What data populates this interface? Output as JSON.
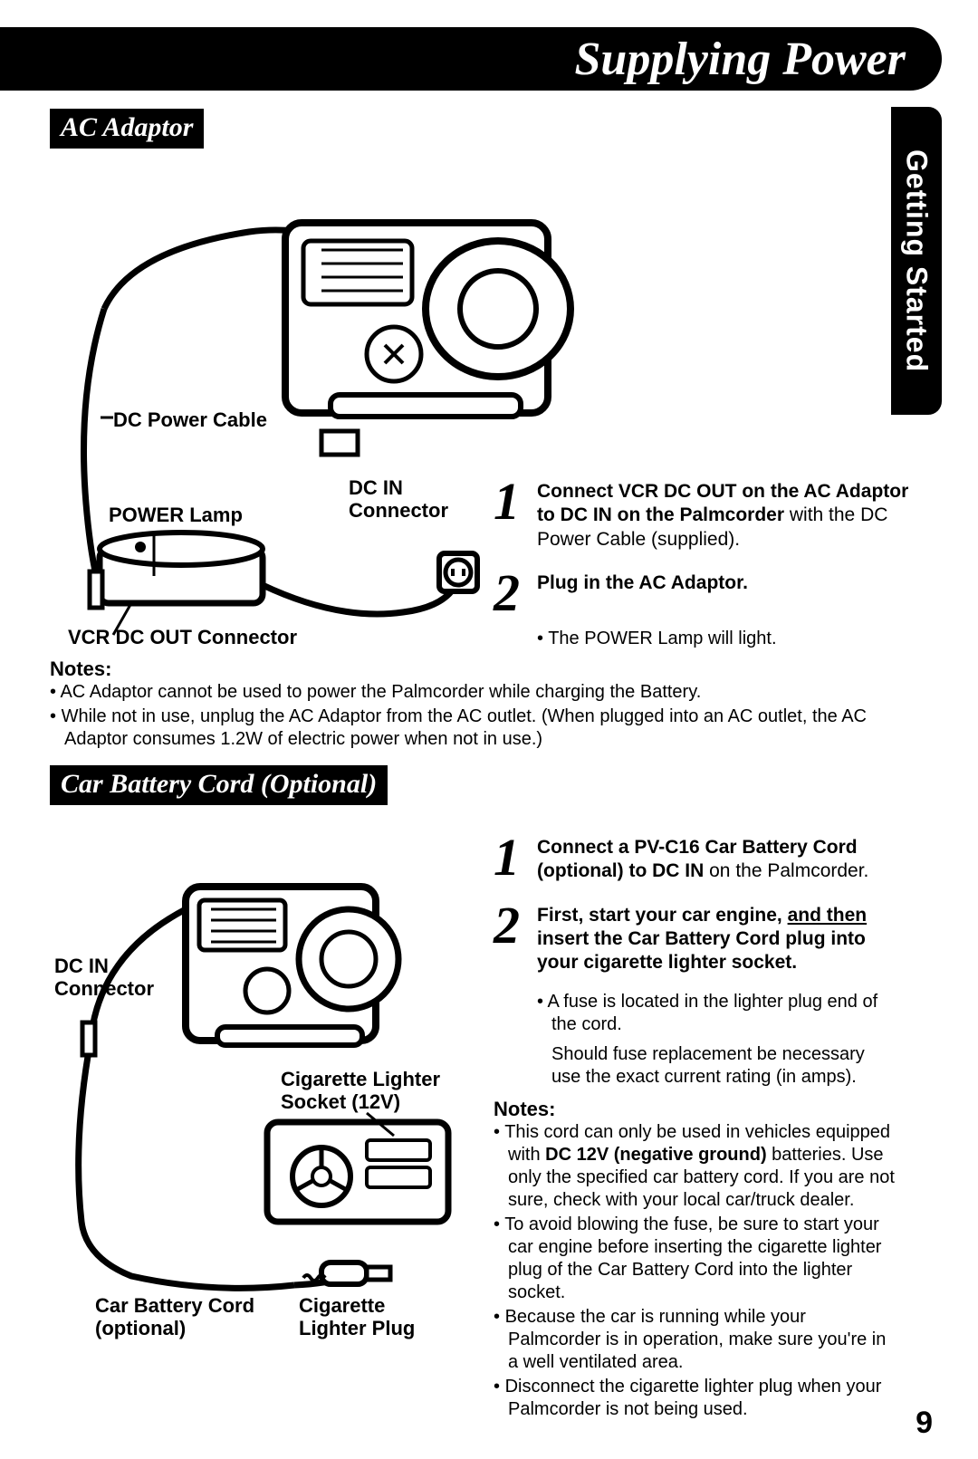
{
  "page": {
    "title": "Supplying Power",
    "side_tab": "Getting Started",
    "number": "9"
  },
  "section1": {
    "label": "AC Adaptor",
    "callouts": {
      "dc_power_cable": "DC Power Cable",
      "power_lamp": "POWER Lamp",
      "dc_in_connector_line1": "DC IN",
      "dc_in_connector_line2": "Connector",
      "vcr_dc_out": "VCR DC OUT Connector"
    },
    "step1": {
      "bold1": "Connect VCR DC OUT on the AC Adaptor to DC IN on the Palmcorder",
      "rest": " with the DC Power Cable (supplied)."
    },
    "step2": {
      "bold": "Plug in the AC Adaptor.",
      "sub": "The POWER Lamp will light."
    },
    "notes_head": "Notes:",
    "notes": [
      "AC Adaptor cannot be used to power the Palmcorder while charging the Battery.",
      "While not in use, unplug the AC Adaptor from the AC outlet. (When plugged into an AC outlet, the AC Adaptor consumes 1.2W of electric power when not in use.)"
    ]
  },
  "section2": {
    "label": "Car Battery Cord (Optional)",
    "callouts": {
      "dc_in_line1": "DC IN",
      "dc_in_line2": "Connector",
      "lighter_socket_line1": "Cigarette Lighter",
      "lighter_socket_line2": "Socket (12V)",
      "car_cord_line1": "Car Battery Cord",
      "car_cord_line2": "(optional)",
      "lighter_plug_line1": "Cigarette",
      "lighter_plug_line2": "Lighter Plug"
    },
    "step1": {
      "bold": "Connect a PV-C16 Car Battery Cord (optional) to DC IN",
      "rest": " on the Palmcorder."
    },
    "step2": {
      "bold_pre": "First, start your car engine, ",
      "bold_underline": "and then",
      "bold_post": " insert the Car Battery Cord plug into your cigarette lighter socket.",
      "sub1": "A fuse is located in the lighter plug end of the cord.",
      "sub2": "Should fuse replacement be necessary use the exact current rating (in amps)."
    },
    "notes_head": "Notes:",
    "notes_html": [
      "This cord can only be used in vehicles equipped with <b>DC 12V (negative ground)</b> batteries. Use only the specified car battery cord. If you are not sure, check with your local car/truck dealer.",
      "To avoid blowing the fuse, be sure to start your car engine before inserting the cigarette lighter plug of the Car Battery Cord into the lighter socket.",
      "Because the car is running while your Palmcorder is in operation, make sure you're in a well ventilated area.",
      "Disconnect the cigarette lighter plug when your Palmcorder is not being used."
    ]
  },
  "style": {
    "colors": {
      "ink": "#000000",
      "paper": "#ffffff"
    },
    "fonts": {
      "serif_italic": "Times New Roman",
      "sans": "Arial"
    }
  }
}
